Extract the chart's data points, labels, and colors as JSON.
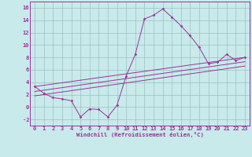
{
  "background_color": "#c8eaea",
  "line_color": "#993399",
  "grid_color": "#9bbfbf",
  "xlabel": "Windchill (Refroidissement éolien,°C)",
  "ylim": [
    -3,
    17
  ],
  "xlim": [
    -0.5,
    23.5
  ],
  "yticks": [
    -2,
    0,
    2,
    4,
    6,
    8,
    10,
    12,
    14,
    16
  ],
  "xticks": [
    0,
    1,
    2,
    3,
    4,
    5,
    6,
    7,
    8,
    9,
    10,
    11,
    12,
    13,
    14,
    15,
    16,
    17,
    18,
    19,
    20,
    21,
    22,
    23
  ],
  "main_x": [
    0,
    1,
    2,
    3,
    4,
    5,
    6,
    7,
    8,
    9,
    10,
    11,
    12,
    13,
    14,
    15,
    16,
    17,
    18,
    19,
    20,
    21,
    22,
    23
  ],
  "main_y": [
    3.3,
    2.2,
    1.5,
    1.3,
    1.0,
    -1.6,
    -0.3,
    -0.4,
    -1.6,
    0.3,
    5.0,
    8.5,
    14.2,
    14.8,
    15.8,
    14.5,
    13.1,
    11.5,
    9.6,
    7.0,
    7.2,
    8.5,
    7.5,
    8.0
  ],
  "trend_lines": [
    {
      "x": [
        0,
        23
      ],
      "y": [
        3.3,
        8.0
      ]
    },
    {
      "x": [
        0,
        23
      ],
      "y": [
        2.5,
        7.3
      ]
    },
    {
      "x": [
        0,
        23
      ],
      "y": [
        1.8,
        6.6
      ]
    }
  ]
}
